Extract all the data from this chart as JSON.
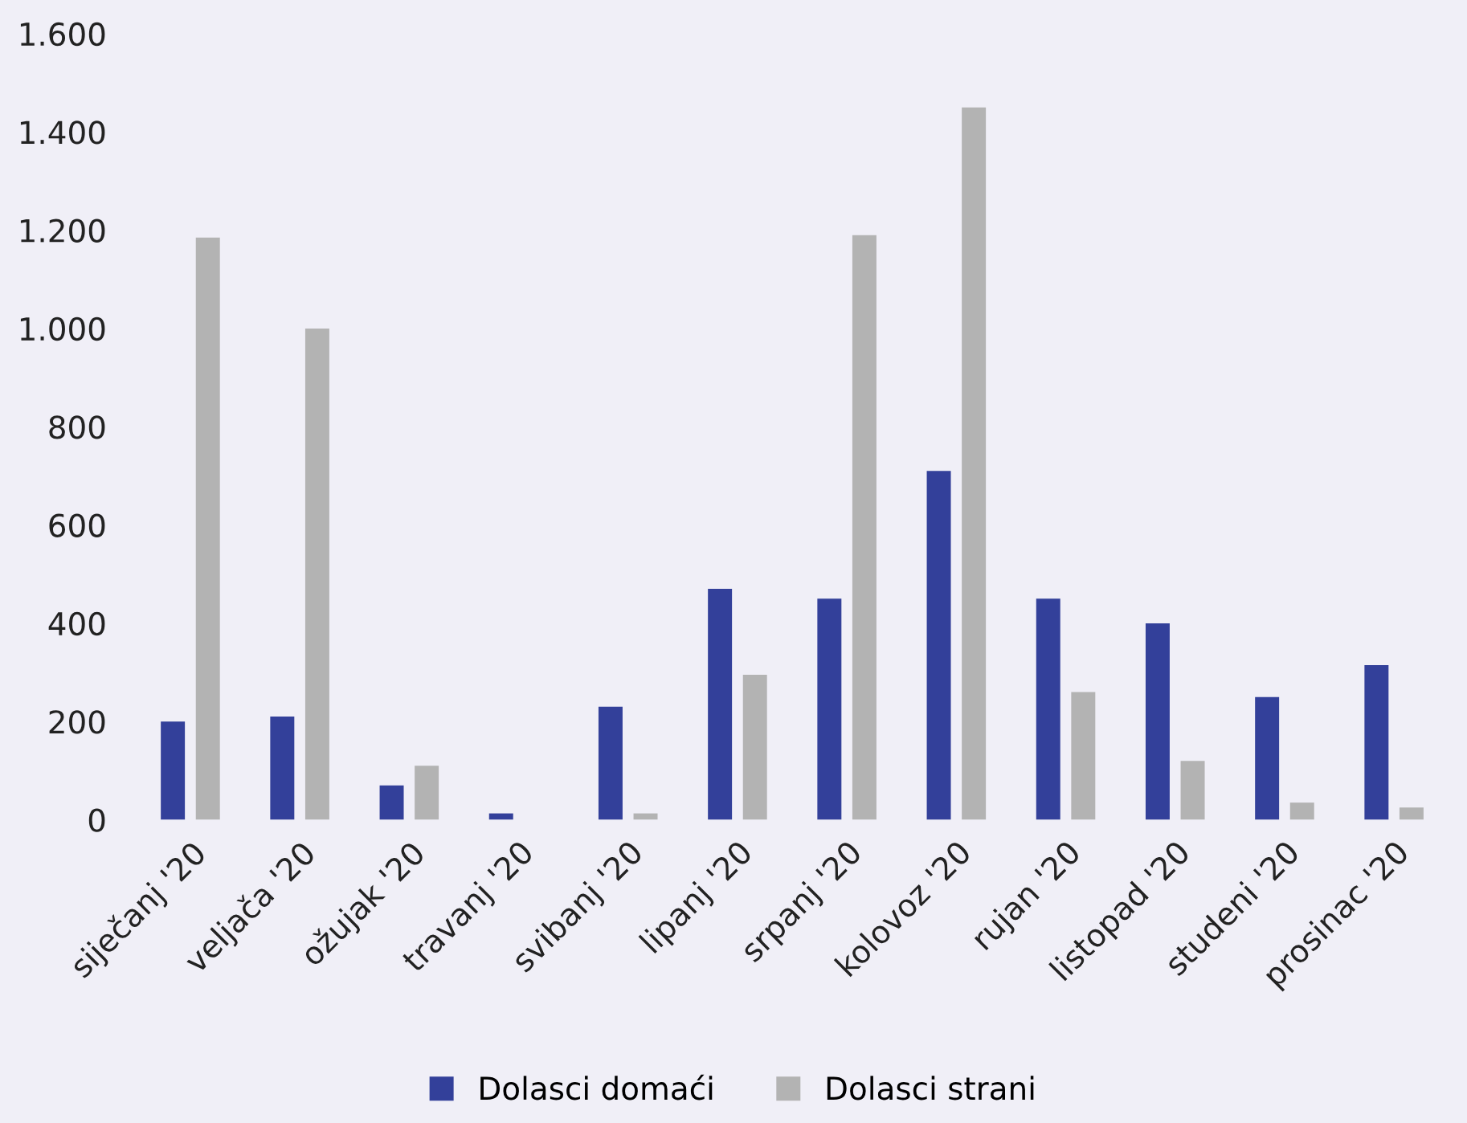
{
  "chart_data": {
    "type": "bar",
    "categories": [
      "siječanj '20",
      "veljača '20",
      "ožujak '20",
      "travanj '20",
      "svibanj '20",
      "lipanj '20",
      "srpanj '20",
      "kolovoz '20",
      "rujan '20",
      "listopad '20",
      "studeni '20",
      "prosinac '20"
    ],
    "series": [
      {
        "name": "Dolasci domaći",
        "color": "#33409a",
        "values": [
          200,
          210,
          70,
          13,
          230,
          470,
          450,
          710,
          450,
          400,
          250,
          315
        ]
      },
      {
        "name": "Dolasci strani",
        "color": "#b3b3b3",
        "values": [
          1185,
          1000,
          110,
          0,
          13,
          295,
          1190,
          1450,
          260,
          120,
          35,
          25
        ]
      }
    ],
    "ylim": [
      0,
      1600
    ],
    "yticks": [
      0,
      200,
      400,
      600,
      800,
      {
        "value": 1000,
        "label": "1.000"
      },
      {
        "value": 1200,
        "label": "1.200"
      },
      {
        "value": 1400,
        "label": "1.400"
      },
      {
        "value": 1600,
        "label": "1.600"
      }
    ],
    "grid": false,
    "legend": "bottom"
  }
}
